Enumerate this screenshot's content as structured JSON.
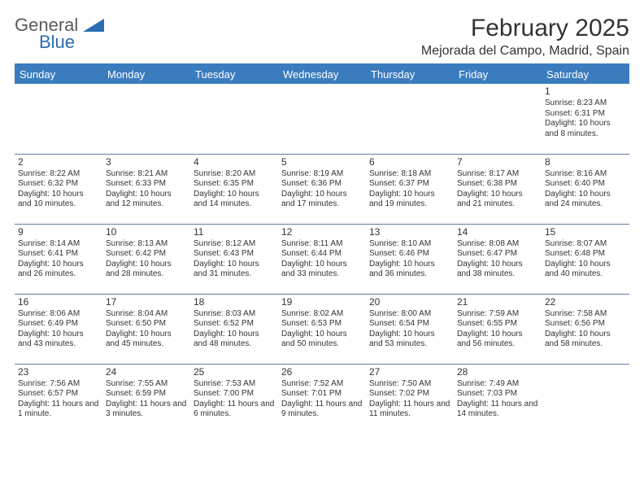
{
  "brand": {
    "line1": "General",
    "line2": "Blue",
    "shape_color": "#2a6db0"
  },
  "title": "February 2025",
  "subtitle": "Mejorada del Campo, Madrid, Spain",
  "header_bg": "#3b7cbf",
  "header_fg": "#ffffff",
  "cell_border": "#5d7ea3",
  "text_color": "#333333",
  "day_font_size": 12,
  "body_font_size": 10,
  "columns": [
    "Sunday",
    "Monday",
    "Tuesday",
    "Wednesday",
    "Thursday",
    "Friday",
    "Saturday"
  ],
  "weeks": [
    [
      null,
      null,
      null,
      null,
      null,
      null,
      {
        "n": "1",
        "sr": "8:23 AM",
        "ss": "6:31 PM",
        "dl": "10 hours and 8 minutes."
      }
    ],
    [
      {
        "n": "2",
        "sr": "8:22 AM",
        "ss": "6:32 PM",
        "dl": "10 hours and 10 minutes."
      },
      {
        "n": "3",
        "sr": "8:21 AM",
        "ss": "6:33 PM",
        "dl": "10 hours and 12 minutes."
      },
      {
        "n": "4",
        "sr": "8:20 AM",
        "ss": "6:35 PM",
        "dl": "10 hours and 14 minutes."
      },
      {
        "n": "5",
        "sr": "8:19 AM",
        "ss": "6:36 PM",
        "dl": "10 hours and 17 minutes."
      },
      {
        "n": "6",
        "sr": "8:18 AM",
        "ss": "6:37 PM",
        "dl": "10 hours and 19 minutes."
      },
      {
        "n": "7",
        "sr": "8:17 AM",
        "ss": "6:38 PM",
        "dl": "10 hours and 21 minutes."
      },
      {
        "n": "8",
        "sr": "8:16 AM",
        "ss": "6:40 PM",
        "dl": "10 hours and 24 minutes."
      }
    ],
    [
      {
        "n": "9",
        "sr": "8:14 AM",
        "ss": "6:41 PM",
        "dl": "10 hours and 26 minutes."
      },
      {
        "n": "10",
        "sr": "8:13 AM",
        "ss": "6:42 PM",
        "dl": "10 hours and 28 minutes."
      },
      {
        "n": "11",
        "sr": "8:12 AM",
        "ss": "6:43 PM",
        "dl": "10 hours and 31 minutes."
      },
      {
        "n": "12",
        "sr": "8:11 AM",
        "ss": "6:44 PM",
        "dl": "10 hours and 33 minutes."
      },
      {
        "n": "13",
        "sr": "8:10 AM",
        "ss": "6:46 PM",
        "dl": "10 hours and 36 minutes."
      },
      {
        "n": "14",
        "sr": "8:08 AM",
        "ss": "6:47 PM",
        "dl": "10 hours and 38 minutes."
      },
      {
        "n": "15",
        "sr": "8:07 AM",
        "ss": "6:48 PM",
        "dl": "10 hours and 40 minutes."
      }
    ],
    [
      {
        "n": "16",
        "sr": "8:06 AM",
        "ss": "6:49 PM",
        "dl": "10 hours and 43 minutes."
      },
      {
        "n": "17",
        "sr": "8:04 AM",
        "ss": "6:50 PM",
        "dl": "10 hours and 45 minutes."
      },
      {
        "n": "18",
        "sr": "8:03 AM",
        "ss": "6:52 PM",
        "dl": "10 hours and 48 minutes."
      },
      {
        "n": "19",
        "sr": "8:02 AM",
        "ss": "6:53 PM",
        "dl": "10 hours and 50 minutes."
      },
      {
        "n": "20",
        "sr": "8:00 AM",
        "ss": "6:54 PM",
        "dl": "10 hours and 53 minutes."
      },
      {
        "n": "21",
        "sr": "7:59 AM",
        "ss": "6:55 PM",
        "dl": "10 hours and 56 minutes."
      },
      {
        "n": "22",
        "sr": "7:58 AM",
        "ss": "6:56 PM",
        "dl": "10 hours and 58 minutes."
      }
    ],
    [
      {
        "n": "23",
        "sr": "7:56 AM",
        "ss": "6:57 PM",
        "dl": "11 hours and 1 minute."
      },
      {
        "n": "24",
        "sr": "7:55 AM",
        "ss": "6:59 PM",
        "dl": "11 hours and 3 minutes."
      },
      {
        "n": "25",
        "sr": "7:53 AM",
        "ss": "7:00 PM",
        "dl": "11 hours and 6 minutes."
      },
      {
        "n": "26",
        "sr": "7:52 AM",
        "ss": "7:01 PM",
        "dl": "11 hours and 9 minutes."
      },
      {
        "n": "27",
        "sr": "7:50 AM",
        "ss": "7:02 PM",
        "dl": "11 hours and 11 minutes."
      },
      {
        "n": "28",
        "sr": "7:49 AM",
        "ss": "7:03 PM",
        "dl": "11 hours and 14 minutes."
      },
      null
    ]
  ],
  "labels": {
    "sunrise": "Sunrise:",
    "sunset": "Sunset:",
    "daylight": "Daylight:"
  }
}
